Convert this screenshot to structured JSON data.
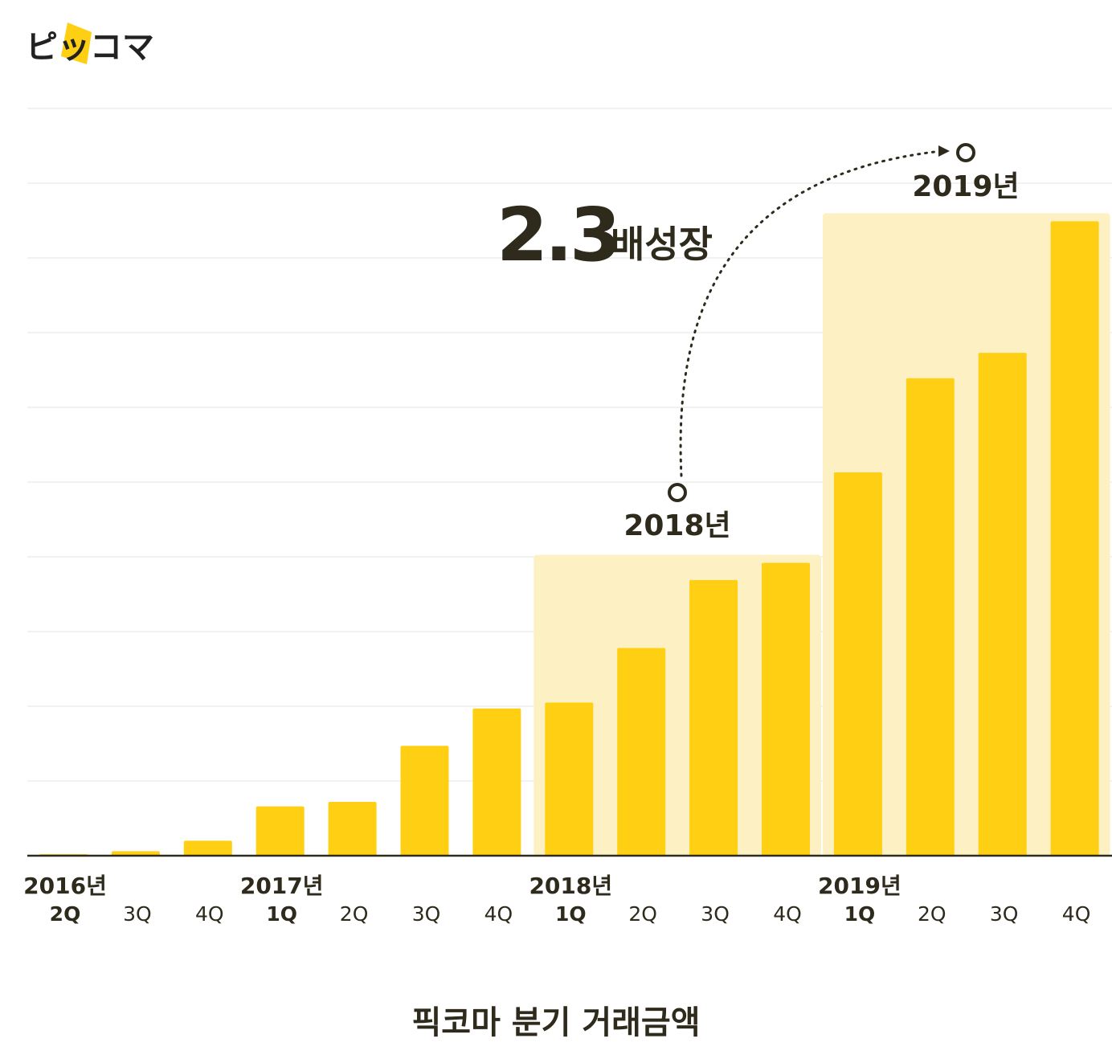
{
  "logo": {
    "text": "ピッコマ",
    "accent": "#fecf12"
  },
  "chart_data": {
    "type": "bar",
    "title": "픽코마 분기 거래금액",
    "xlabel": "",
    "ylabel": "",
    "y_unit_note": "",
    "grid": true,
    "categories": [
      "2016년 2Q",
      "3Q",
      "4Q",
      "2017년 1Q",
      "2Q",
      "3Q",
      "4Q",
      "2018년 1Q",
      "2Q",
      "3Q",
      "4Q",
      "2019년 1Q",
      "2Q",
      "3Q",
      "4Q"
    ],
    "tick_labels": [
      {
        "year": "2016년",
        "quarter": "2Q"
      },
      {
        "year": "",
        "quarter": "3Q"
      },
      {
        "year": "",
        "quarter": "4Q"
      },
      {
        "year": "2017년",
        "quarter": "1Q"
      },
      {
        "year": "",
        "quarter": "2Q"
      },
      {
        "year": "",
        "quarter": "3Q"
      },
      {
        "year": "",
        "quarter": "4Q"
      },
      {
        "year": "2018년",
        "quarter": "1Q"
      },
      {
        "year": "",
        "quarter": "2Q"
      },
      {
        "year": "",
        "quarter": "3Q"
      },
      {
        "year": "",
        "quarter": "4Q"
      },
      {
        "year": "2019년",
        "quarter": "1Q"
      },
      {
        "year": "",
        "quarter": "2Q"
      },
      {
        "year": "",
        "quarter": "3Q"
      },
      {
        "year": "",
        "quarter": "4Q"
      }
    ],
    "values": [
      0.02,
      0.06,
      0.2,
      0.66,
      0.72,
      1.47,
      1.97,
      2.05,
      2.78,
      3.69,
      3.92,
      5.13,
      6.39,
      6.73,
      8.49
    ],
    "ylim": [
      0,
      10
    ],
    "colors": {
      "bar": "#fecf12",
      "highlight": "#fdf1c4",
      "text": "#2e2a1c",
      "grid": "#e6e6e6"
    },
    "highlights": [
      {
        "label": "2018년",
        "from_index": 7,
        "to_index": 10
      },
      {
        "label": "2019년",
        "from_index": 11,
        "to_index": 14
      }
    ],
    "annotation": {
      "number": "2.3",
      "text": "배성장"
    }
  }
}
